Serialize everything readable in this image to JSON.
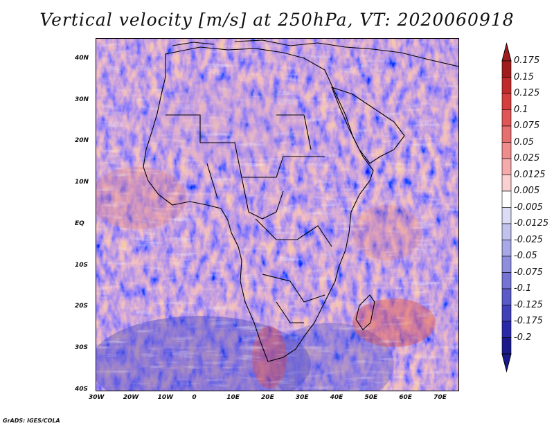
{
  "title": "Vertical velocity [m/s] at 250hPa, VT: 2020060918",
  "footer": "GrADS: IGES/COLA",
  "map": {
    "lon_range": [
      -30,
      75
    ],
    "lat_range": [
      -40,
      45
    ],
    "lon_ticks": [
      {
        "value": -30,
        "label": "30W"
      },
      {
        "value": -20,
        "label": "20W"
      },
      {
        "value": -10,
        "label": "10W"
      },
      {
        "value": 0,
        "label": "0"
      },
      {
        "value": 10,
        "label": "10E"
      },
      {
        "value": 20,
        "label": "20E"
      },
      {
        "value": 30,
        "label": "30E"
      },
      {
        "value": 40,
        "label": "40E"
      },
      {
        "value": 50,
        "label": "50E"
      },
      {
        "value": 60,
        "label": "60E"
      },
      {
        "value": 70,
        "label": "70E"
      }
    ],
    "lat_ticks": [
      {
        "value": 40,
        "label": "40N"
      },
      {
        "value": 30,
        "label": "30N"
      },
      {
        "value": 20,
        "label": "20N"
      },
      {
        "value": 10,
        "label": "10N"
      },
      {
        "value": 0,
        "label": "EQ"
      },
      {
        "value": -10,
        "label": "10S"
      },
      {
        "value": -20,
        "label": "20S"
      },
      {
        "value": -30,
        "label": "30S"
      },
      {
        "value": -40,
        "label": "40S"
      }
    ]
  },
  "colorbar": {
    "labels": [
      "0.175",
      "0.15",
      "0.125",
      "0.1",
      "0.075",
      "0.05",
      "0.025",
      "0.0125",
      "0.005",
      "-0.005",
      "-0.0125",
      "-0.025",
      "-0.05",
      "-0.075",
      "-0.1",
      "-0.125",
      "-0.175",
      "-0.2"
    ],
    "colors": [
      "#a01c1c",
      "#c12a2a",
      "#d63e3e",
      "#e05555",
      "#e86f6f",
      "#ef8c8c",
      "#f5abab",
      "#fad0d0",
      "#ffffff",
      "#dcdcf5",
      "#c2c2ee",
      "#a8a8e6",
      "#8e8ede",
      "#7474d4",
      "#5a5ac8",
      "#4040b8",
      "#2a2aa8",
      "#1a1a8c"
    ]
  }
}
